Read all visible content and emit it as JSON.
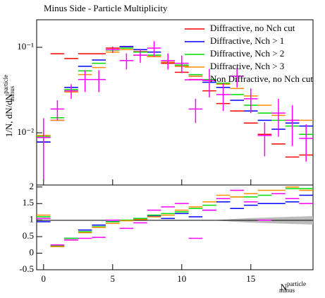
{
  "chart_data": [
    {
      "type": "errorbar",
      "title": "Minus Side - Particle Multiplicity",
      "ylabel": {
        "main": "1/N, dN/dN",
        "sup": "particle",
        "sub": "minus"
      },
      "log_y": true,
      "legend": "upper right",
      "x": [
        0,
        1,
        2,
        3,
        4,
        5,
        6,
        7,
        8,
        9,
        10,
        11,
        12,
        13,
        14,
        15,
        16,
        17,
        18,
        19
      ],
      "xlim": [
        -0.5,
        19.5
      ],
      "ylim": [
        0.00245,
        0.21
      ],
      "yticks": [
        {
          "value": 0.01,
          "label": "10⁻²"
        },
        {
          "value": 0.1,
          "label": "10⁻¹"
        }
      ],
      "series": [
        {
          "name": "Diffractive, no Nch cut",
          "color": "#ff0000",
          "values": [
            0.0078,
            0.084,
            0.074,
            0.084,
            0.084,
            0.098,
            0.102,
            0.089,
            0.078,
            0.065,
            0.051,
            0.042,
            0.031,
            0.022,
            0.018,
            0.013,
            0.0096,
            0.0074,
            0.0052,
            0.0055
          ]
        },
        {
          "name": "Diffractive, Nch > 1",
          "color": "#0000ff",
          "values": [
            0.0078,
            0.014,
            0.034,
            0.06,
            0.071,
            0.094,
            0.102,
            0.094,
            0.088,
            0.067,
            0.06,
            0.046,
            0.039,
            0.034,
            0.024,
            0.018,
            0.014,
            0.011,
            0.013,
            0.012
          ]
        },
        {
          "name": "Diffractive, Nch > 2",
          "color": "#00dd00",
          "values": [
            0.0091,
            0.015,
            0.032,
            0.053,
            0.065,
            0.093,
            0.098,
            0.088,
            0.081,
            0.07,
            0.062,
            0.048,
            0.042,
            0.038,
            0.028,
            0.021,
            0.017,
            0.014,
            0.012,
            0.0096
          ]
        },
        {
          "name": "Diffractive, Nch > 3",
          "color": "#ff8c00",
          "values": [
            0.0093,
            0.014,
            0.03,
            0.048,
            0.058,
            0.088,
            0.094,
            0.081,
            0.078,
            0.067,
            0.06,
            0.046,
            0.041,
            0.037,
            0.033,
            0.027,
            0.021,
            0.016,
            0.014,
            0.014
          ]
        },
        {
          "name": "Non Diffractive, no Nch cut",
          "color": "#ff00ff",
          "values": [
            0.0088,
            0.019,
            0.031,
            0.042,
            0.042,
            0.094,
            0.07,
            0.081,
            0.098,
            0.07,
            0.065,
            0.019,
            0.041,
            0.028,
            0.046,
            0.025,
            0.0093,
            0.017,
            0.014,
            0.0086
          ],
          "errors": [
            0.006,
            0.005,
            0.006,
            0.012,
            0.012,
            0.008,
            0.015,
            0.015,
            0.02,
            0.015,
            0.015,
            0.006,
            0.015,
            0.01,
            0.012,
            0.008,
            0.004,
            0.008,
            0.007,
            0.004
          ]
        }
      ]
    },
    {
      "type": "ratio",
      "xlabel": {
        "main": "N",
        "sup": "particle",
        "sub": "minus"
      },
      "x": [
        0,
        1,
        2,
        3,
        4,
        5,
        6,
        7,
        8,
        9,
        10,
        11,
        12,
        13,
        14,
        15,
        16,
        17,
        18,
        19
      ],
      "xlim": [
        -0.5,
        19.5
      ],
      "xticks": [
        0,
        5,
        10,
        15
      ],
      "ylim": [
        -0.5,
        2.06
      ],
      "yticks": [
        -0.5,
        0,
        0.5,
        1,
        1.5,
        2
      ],
      "series": [
        {
          "color": "#0000ff",
          "values": [
            0.95,
            0.22,
            0.45,
            0.7,
            0.85,
            0.96,
            1.0,
            1.05,
            1.12,
            1.05,
            1.2,
            1.1,
            1.3,
            1.55,
            1.35,
            1.45,
            1.5,
            1.5,
            1.55,
            1.75
          ]
        },
        {
          "color": "#00dd00",
          "values": [
            1.1,
            0.22,
            0.45,
            0.65,
            0.8,
            0.95,
            1.0,
            1.05,
            1.15,
            1.2,
            1.25,
            1.35,
            1.45,
            1.65,
            1.7,
            1.7,
            1.75,
            1.8,
            1.95,
            1.95
          ]
        },
        {
          "color": "#ff8c00",
          "values": [
            1.15,
            0.2,
            0.4,
            0.62,
            0.78,
            0.9,
            0.98,
            1.02,
            1.1,
            1.15,
            1.3,
            1.4,
            1.55,
            1.75,
            1.7,
            1.8,
            1.9,
            1.9,
            2.0,
            1.9
          ]
        },
        {
          "color": "#ff00ff",
          "values": [
            1.05,
            0.25,
            0.4,
            0.45,
            0.48,
            1.0,
            0.75,
            0.92,
            1.3,
            1.4,
            1.5,
            0.45,
            1.3,
            1.65,
            1.9,
            1.55,
            1.0,
            1.8,
            1.65,
            1.5
          ]
        }
      ]
    }
  ]
}
